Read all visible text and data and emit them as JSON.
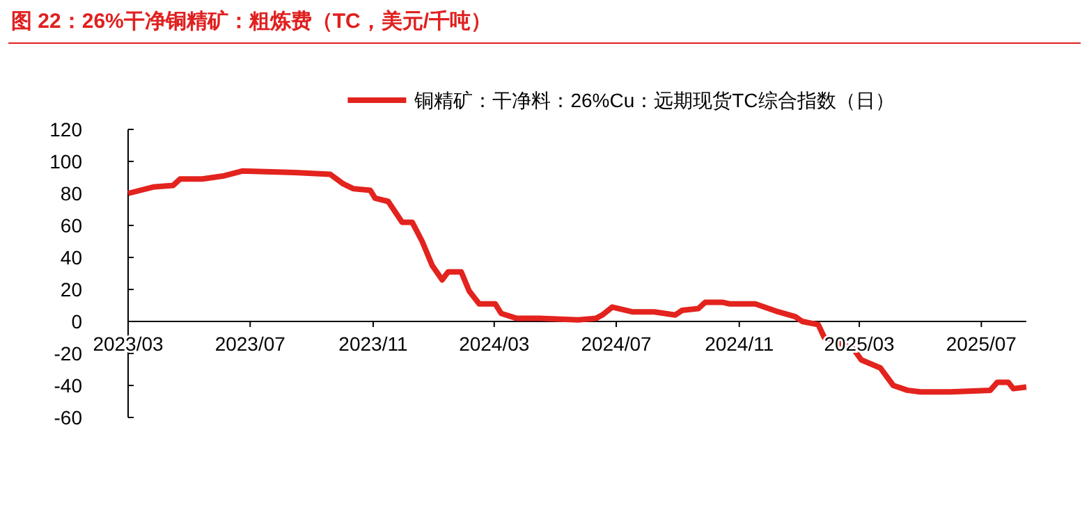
{
  "chart_data": {
    "type": "line",
    "title": "图 22：26%干净铜精矿：粗炼费（TC，美元/千吨）",
    "legend": "top",
    "x": [
      "2023-03-01",
      "2023-03-26",
      "2023-04-15",
      "2023-04-22",
      "2023-05-14",
      "2023-06-05",
      "2023-06-23",
      "2023-08-15",
      "2023-09-19",
      "2023-10-02",
      "2023-10-12",
      "2023-10-29",
      "2023-11-03",
      "2023-11-16",
      "2023-11-30",
      "2023-12-10",
      "2023-12-20",
      "2023-12-30",
      "2024-01-09",
      "2024-01-15",
      "2024-01-28",
      "2024-02-05",
      "2024-02-15",
      "2024-03-02",
      "2024-03-08",
      "2024-03-23",
      "2024-04-15",
      "2024-05-24",
      "2024-06-11",
      "2024-06-17",
      "2024-06-27",
      "2024-07-17",
      "2024-08-08",
      "2024-08-29",
      "2024-09-05",
      "2024-09-21",
      "2024-09-28",
      "2024-10-15",
      "2024-10-22",
      "2024-11-17",
      "2024-12-10",
      "2024-12-27",
      "2025-01-03",
      "2025-01-19",
      "2025-01-25",
      "2025-01-29",
      "2025-02-23",
      "2025-03-03",
      "2025-03-22",
      "2025-04-04",
      "2025-04-18",
      "2025-05-01",
      "2025-05-31",
      "2025-07-10",
      "2025-07-17",
      "2025-07-28",
      "2025-08-02",
      "2025-08-15"
    ],
    "series": [
      {
        "name": "铜精矿：干净料：26%Cu：远期现货TC综合指数（日）",
        "color": "#e3231e",
        "values": [
          80,
          84,
          85,
          89,
          89,
          91,
          94,
          93,
          92,
          86,
          83,
          82,
          77,
          75,
          62,
          62,
          50,
          35,
          26,
          31,
          31,
          19,
          11,
          11,
          5,
          2,
          2,
          1,
          2,
          4,
          9,
          6,
          6,
          4,
          7,
          8,
          12,
          12,
          11,
          11,
          6,
          3,
          0,
          -2,
          -10,
          -11,
          -17,
          -24,
          -29,
          -40,
          -43,
          -44,
          -44,
          -43,
          -38,
          -38,
          -42,
          -41
        ]
      }
    ],
    "xlim": [
      "2023-03-01",
      "2025-08-15"
    ],
    "xticks": [
      {
        "value": "2023-03-01",
        "label": "2023/03"
      },
      {
        "value": "2023-07-01",
        "label": "2023/07"
      },
      {
        "value": "2023-11-01",
        "label": "2023/11"
      },
      {
        "value": "2024-03-01",
        "label": "2024/03"
      },
      {
        "value": "2024-07-01",
        "label": "2024/07"
      },
      {
        "value": "2024-11-01",
        "label": "2024/11"
      },
      {
        "value": "2025-03-01",
        "label": "2025/03"
      },
      {
        "value": "2025-07-01",
        "label": "2025/07"
      }
    ],
    "ylim": [
      -60,
      120
    ],
    "yticks": [
      -60,
      -40,
      -20,
      0,
      20,
      40,
      60,
      80,
      100,
      120
    ]
  }
}
